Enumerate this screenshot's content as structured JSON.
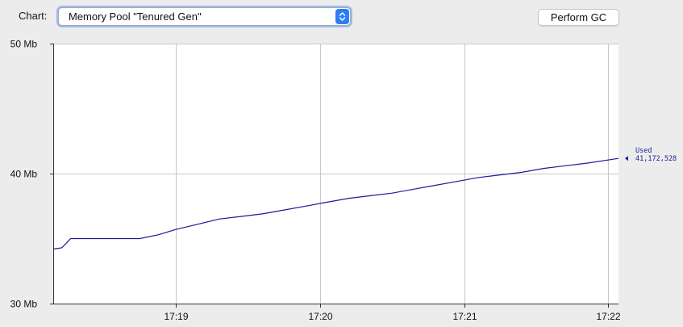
{
  "toolbar": {
    "chart_label": "Chart:",
    "selected_pool": "Memory Pool \"Tenured Gen\"",
    "gc_button_label": "Perform GC"
  },
  "colors": {
    "series": "#1a1a9c",
    "grid": "#c8c8c8",
    "plot_bg": "#ffffff",
    "select_accent": "#2d7cf6"
  },
  "chart_data": {
    "type": "line",
    "title": "",
    "xlabel": "",
    "ylabel": "",
    "grid": true,
    "x_unit": "minutes since 17:00",
    "xlim": [
      18.155,
      22.07
    ],
    "ylim": [
      30,
      50
    ],
    "y_ticks": [
      30,
      40,
      50
    ],
    "y_tick_labels": [
      "30 Mb",
      "40 Mb",
      "50 Mb"
    ],
    "x_ticks": [
      19,
      20,
      21,
      22
    ],
    "x_tick_labels": [
      "17:19",
      "17:20",
      "17:21",
      "17:22"
    ],
    "series": [
      {
        "name": "Used",
        "last_value_label": "41,172,528",
        "x": [
          18.155,
          18.21,
          18.27,
          18.45,
          18.6,
          18.75,
          18.88,
          19.0,
          19.15,
          19.3,
          19.45,
          19.6,
          19.75,
          19.9,
          20.05,
          20.2,
          20.35,
          20.5,
          20.65,
          20.8,
          20.95,
          21.1,
          21.25,
          21.4,
          21.55,
          21.7,
          21.85,
          22.07
        ],
        "values": [
          34.2,
          34.3,
          35.0,
          35.0,
          35.0,
          35.0,
          35.3,
          35.7,
          36.1,
          36.5,
          36.7,
          36.9,
          37.2,
          37.5,
          37.8,
          38.1,
          38.3,
          38.5,
          38.8,
          39.1,
          39.4,
          39.7,
          39.9,
          40.1,
          40.4,
          40.6,
          40.8,
          41.17
        ]
      }
    ]
  }
}
